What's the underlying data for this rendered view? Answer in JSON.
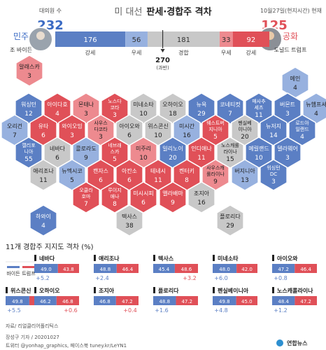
{
  "header": {
    "title_prefix": "미 대선",
    "title_main": "판세·경합주 격차",
    "date_note": "10월27일(현지시간) 현재"
  },
  "electoral": {
    "label": "대의원 수",
    "dem_total": "232",
    "rep_total": "125",
    "dem_party": "민주",
    "rep_party": "공화",
    "dem_name": "조 바이든",
    "rep_name": "도널드 트럼프",
    "threshold": "270",
    "threshold_note": "(과반)",
    "segments": [
      {
        "key": "dem_strong",
        "value": 176,
        "label": "강세",
        "color": "#5b7fc4"
      },
      {
        "key": "dem_lean",
        "value": 56,
        "label": "우세",
        "color": "#97b1df"
      },
      {
        "key": "tossup",
        "value": 181,
        "label": "경합",
        "color": "#c8c8c8"
      },
      {
        "key": "rep_lean",
        "value": 33,
        "label": "우세",
        "color": "#ed8a8f"
      },
      {
        "key": "rep_strong",
        "value": 92,
        "label": "강세",
        "color": "#e05058"
      }
    ]
  },
  "states": [
    {
      "name": "알래스카",
      "ev": "3",
      "cat": "rep_lean"
    },
    {
      "name": "메인",
      "ev": "4",
      "cat": "dem_lean"
    },
    {
      "name": "워싱턴",
      "ev": "12",
      "cat": "dem_strong"
    },
    {
      "name": "아이다호",
      "ev": "4",
      "cat": "rep_strong"
    },
    {
      "name": "몬태나",
      "ev": "3",
      "cat": "rep_lean"
    },
    {
      "name": "노스다코타",
      "ev": "3",
      "cat": "rep_strong"
    },
    {
      "name": "미네소타",
      "ev": "10",
      "cat": "tossup"
    },
    {
      "name": "오하이오",
      "ev": "18",
      "cat": "tossup"
    },
    {
      "name": "뉴욕",
      "ev": "29",
      "cat": "dem_strong"
    },
    {
      "name": "코네티컷",
      "ev": "7",
      "cat": "dem_strong"
    },
    {
      "name": "매사추세츠",
      "ev": "11",
      "cat": "dem_strong"
    },
    {
      "name": "버몬트",
      "ev": "3",
      "cat": "dem_strong"
    },
    {
      "name": "뉴햄프셔",
      "ev": "4",
      "cat": "dem_lean"
    },
    {
      "name": "오리건",
      "ev": "7",
      "cat": "dem_lean"
    },
    {
      "name": "유타",
      "ev": "6",
      "cat": "rep_strong"
    },
    {
      "name": "와이오밍",
      "ev": "3",
      "cat": "rep_strong"
    },
    {
      "name": "사우스다코타",
      "ev": "3",
      "cat": "rep_lean"
    },
    {
      "name": "아이오와",
      "ev": "6",
      "cat": "tossup"
    },
    {
      "name": "위스콘신",
      "ev": "10",
      "cat": "tossup"
    },
    {
      "name": "미시간",
      "ev": "16",
      "cat": "dem_lean"
    },
    {
      "name": "웨스트버지니아",
      "ev": "5",
      "cat": "rep_strong"
    },
    {
      "name": "펜실베이니아",
      "ev": "20",
      "cat": "tossup"
    },
    {
      "name": "뉴저지",
      "ev": "14",
      "cat": "dem_strong"
    },
    {
      "name": "로드아일랜드",
      "ev": "4",
      "cat": "dem_strong"
    },
    {
      "name": "캘리포니아",
      "ev": "55",
      "cat": "dem_strong"
    },
    {
      "name": "네바다",
      "ev": "6",
      "cat": "tossup"
    },
    {
      "name": "콜로라도",
      "ev": "9",
      "cat": "dem_lean"
    },
    {
      "name": "네브래스카",
      "ev": "5",
      "cat": "rep_strong"
    },
    {
      "name": "미주리",
      "ev": "10",
      "cat": "rep_lean"
    },
    {
      "name": "일리노이",
      "ev": "20",
      "cat": "dem_strong"
    },
    {
      "name": "인디애나",
      "ev": "11",
      "cat": "rep_strong"
    },
    {
      "name": "노스캐롤라이나",
      "ev": "15",
      "cat": "tossup"
    },
    {
      "name": "메릴랜드",
      "ev": "10",
      "cat": "dem_strong"
    },
    {
      "name": "델라웨어",
      "ev": "3",
      "cat": "dem_strong"
    },
    {
      "name": "애리조나",
      "ev": "11",
      "cat": "tossup"
    },
    {
      "name": "뉴멕시코",
      "ev": "5",
      "cat": "dem_lean"
    },
    {
      "name": "캔자스",
      "ev": "6",
      "cat": "rep_strong"
    },
    {
      "name": "아칸소",
      "ev": "6",
      "cat": "rep_strong"
    },
    {
      "name": "테네시",
      "ev": "11",
      "cat": "rep_strong"
    },
    {
      "name": "켄터키",
      "ev": "8",
      "cat": "rep_strong"
    },
    {
      "name": "사우스캐롤라이나",
      "ev": "9",
      "cat": "rep_lean"
    },
    {
      "name": "버지니아",
      "ev": "13",
      "cat": "dem_lean"
    },
    {
      "name": "워싱턴 DC",
      "ev": "3",
      "cat": "dem_strong"
    },
    {
      "name": "오클라호마",
      "ev": "7",
      "cat": "rep_strong"
    },
    {
      "name": "루이지애나",
      "ev": "8",
      "cat": "rep_strong"
    },
    {
      "name": "미시시피",
      "ev": "6",
      "cat": "rep_strong"
    },
    {
      "name": "앨라배마",
      "ev": "9",
      "cat": "rep_strong"
    },
    {
      "name": "조지아",
      "ev": "16",
      "cat": "tossup"
    },
    {
      "name": "하와이",
      "ev": "4",
      "cat": "dem_strong"
    },
    {
      "name": "텍사스",
      "ev": "38",
      "cat": "tossup"
    },
    {
      "name": "플로리다",
      "ev": "29",
      "cat": "tossup"
    }
  ],
  "chart_data": {
    "type": "bar",
    "title": "11개 경합주 지지도 격차 (%)",
    "legend": [
      "바이든",
      "트럼프"
    ],
    "colors": {
      "biden": "#5b7fc4",
      "trump": "#e05058"
    },
    "states": [
      {
        "name": "네바다",
        "biden": 49.0,
        "trump": 43.8,
        "diff": "+5.2",
        "leader": "biden"
      },
      {
        "name": "애리조나",
        "biden": 48.8,
        "trump": 46.4,
        "diff": "+2.4",
        "leader": "biden"
      },
      {
        "name": "텍사스",
        "biden": 45.4,
        "trump": 48.6,
        "diff": "+3.2",
        "leader": "trump"
      },
      {
        "name": "미네소타",
        "biden": 48.0,
        "trump": 42.0,
        "diff": "+6.0",
        "leader": "biden"
      },
      {
        "name": "아이오와",
        "biden": 47.2,
        "trump": 46.4,
        "diff": "+0.8",
        "leader": "biden"
      },
      {
        "name": "위스콘신",
        "biden": 49.8,
        "trump": 44.3,
        "diff": "+5.5",
        "leader": "biden"
      },
      {
        "name": "오하이오",
        "biden": 46.2,
        "trump": 46.8,
        "diff": "+0.6",
        "leader": "trump"
      },
      {
        "name": "조지아",
        "biden": 46.8,
        "trump": 47.2,
        "diff": "+0.4",
        "leader": "trump"
      },
      {
        "name": "플로리다",
        "biden": 48.8,
        "trump": 47.2,
        "diff": "+1.6",
        "leader": "biden"
      },
      {
        "name": "펜실베이니아",
        "biden": 49.8,
        "trump": 45.0,
        "diff": "+4.8",
        "leader": "biden"
      },
      {
        "name": "노스캐롤라이나",
        "biden": 48.4,
        "trump": 47.2,
        "diff": "+1.2",
        "leader": "biden"
      }
    ]
  },
  "footer": {
    "source": "자료/ 리얼클리어폴리틱스",
    "credit": "장성구 기자 / 20201027",
    "sns": "트위터 @yonhap_graphics, 페이스북 tuney.kr/LeYN1",
    "logo_text": "연합뉴스"
  }
}
